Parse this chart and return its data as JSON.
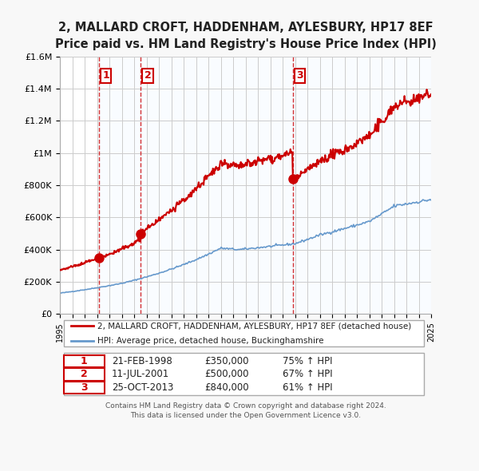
{
  "title": "2, MALLARD CROFT, HADDENHAM, AYLESBURY, HP17 8EF",
  "subtitle": "Price paid vs. HM Land Registry's House Price Index (HPI)",
  "red_label": "2, MALLARD CROFT, HADDENHAM, AYLESBURY, HP17 8EF (detached house)",
  "blue_label": "HPI: Average price, detached house, Buckinghamshire",
  "footer1": "Contains HM Land Registry data © Crown copyright and database right 2024.",
  "footer2": "This data is licensed under the Open Government Licence v3.0.",
  "sale_points": [
    {
      "num": 1,
      "date": "21-FEB-1998",
      "price": 350000,
      "pct": "75% ↑ HPI",
      "year": 1998.13
    },
    {
      "num": 2,
      "date": "11-JUL-2001",
      "price": 500000,
      "pct": "67% ↑ HPI",
      "year": 2001.53
    },
    {
      "num": 3,
      "date": "25-OCT-2013",
      "price": 840000,
      "pct": "61% ↑ HPI",
      "year": 2013.82
    }
  ],
  "xlim": [
    1995,
    2025
  ],
  "ylim": [
    0,
    1600000
  ],
  "yticks": [
    0,
    200000,
    400000,
    600000,
    800000,
    1000000,
    1200000,
    1400000,
    1600000
  ],
  "ytick_labels": [
    "£0",
    "£200K",
    "£400K",
    "£600K",
    "£800K",
    "£1M",
    "£1.2M",
    "£1.4M",
    "£1.6M"
  ],
  "bg_color": "#f0f4ff",
  "plot_bg": "#ffffff",
  "red_color": "#cc0000",
  "blue_color": "#6699cc",
  "dashed_color": "#cc0000",
  "shaded_color": "#ddeeff",
  "grid_color": "#cccccc",
  "sale_marker_size": 8,
  "shade_regions": [
    {
      "x_start": 1998.13,
      "x_end": 2001.53
    },
    {
      "x_start": 2001.53,
      "x_end": 2013.82
    },
    {
      "x_start": 2013.82,
      "x_end": 2025
    }
  ]
}
